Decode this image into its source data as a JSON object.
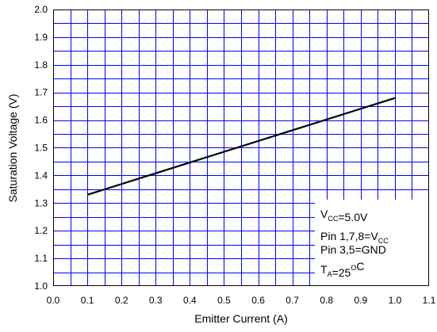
{
  "chart_data": {
    "type": "line",
    "title": "",
    "xlabel": "Emitter Current (A)",
    "ylabel": "Saturation Voltage (V)",
    "xlim": [
      0.0,
      1.1
    ],
    "ylim": [
      1.0,
      2.0
    ],
    "x_ticks": [
      "0.0",
      "0.1",
      "0.2",
      "0.3",
      "0.4",
      "0.5",
      "0.6",
      "0.7",
      "0.8",
      "0.9",
      "1.0",
      "1.1"
    ],
    "y_ticks": [
      "1.0",
      "1.1",
      "1.2",
      "1.3",
      "1.4",
      "1.5",
      "1.6",
      "1.7",
      "1.8",
      "1.9",
      "2.0"
    ],
    "x_tick_values": [
      0.0,
      0.1,
      0.2,
      0.3,
      0.4,
      0.5,
      0.6,
      0.7,
      0.8,
      0.9,
      1.0,
      1.1
    ],
    "y_tick_values": [
      1.0,
      1.1,
      1.2,
      1.3,
      1.4,
      1.5,
      1.6,
      1.7,
      1.8,
      1.9,
      2.0
    ],
    "minor_divisions": 2,
    "grid": true,
    "grid_color": "#0000ff",
    "line_color": "#000000",
    "series": [
      {
        "x": [
          0.1,
          1.0
        ],
        "y": [
          1.33,
          1.68
        ]
      }
    ],
    "legend": {
      "placement": "bottom-right",
      "lines": [
        {
          "parts": [
            {
              "t": "V",
              "s": "normal"
            },
            {
              "t": "CC",
              "s": "sub"
            },
            {
              "t": "=5.0V",
              "s": "normal"
            }
          ]
        },
        {
          "parts": [
            {
              "t": "Pin 1,7,8=V",
              "s": "normal"
            },
            {
              "t": "CC",
              "s": "sub"
            }
          ]
        },
        {
          "parts": [
            {
              "t": "Pin 3,5=GND",
              "s": "normal"
            }
          ]
        },
        {
          "parts": [
            {
              "t": "T",
              "s": "normal"
            },
            {
              "t": "A",
              "s": "sub"
            },
            {
              "t": "=25",
              "s": "normal"
            },
            {
              "t": "O",
              "s": "sup"
            },
            {
              "t": "C",
              "s": "normal"
            }
          ]
        }
      ]
    }
  }
}
